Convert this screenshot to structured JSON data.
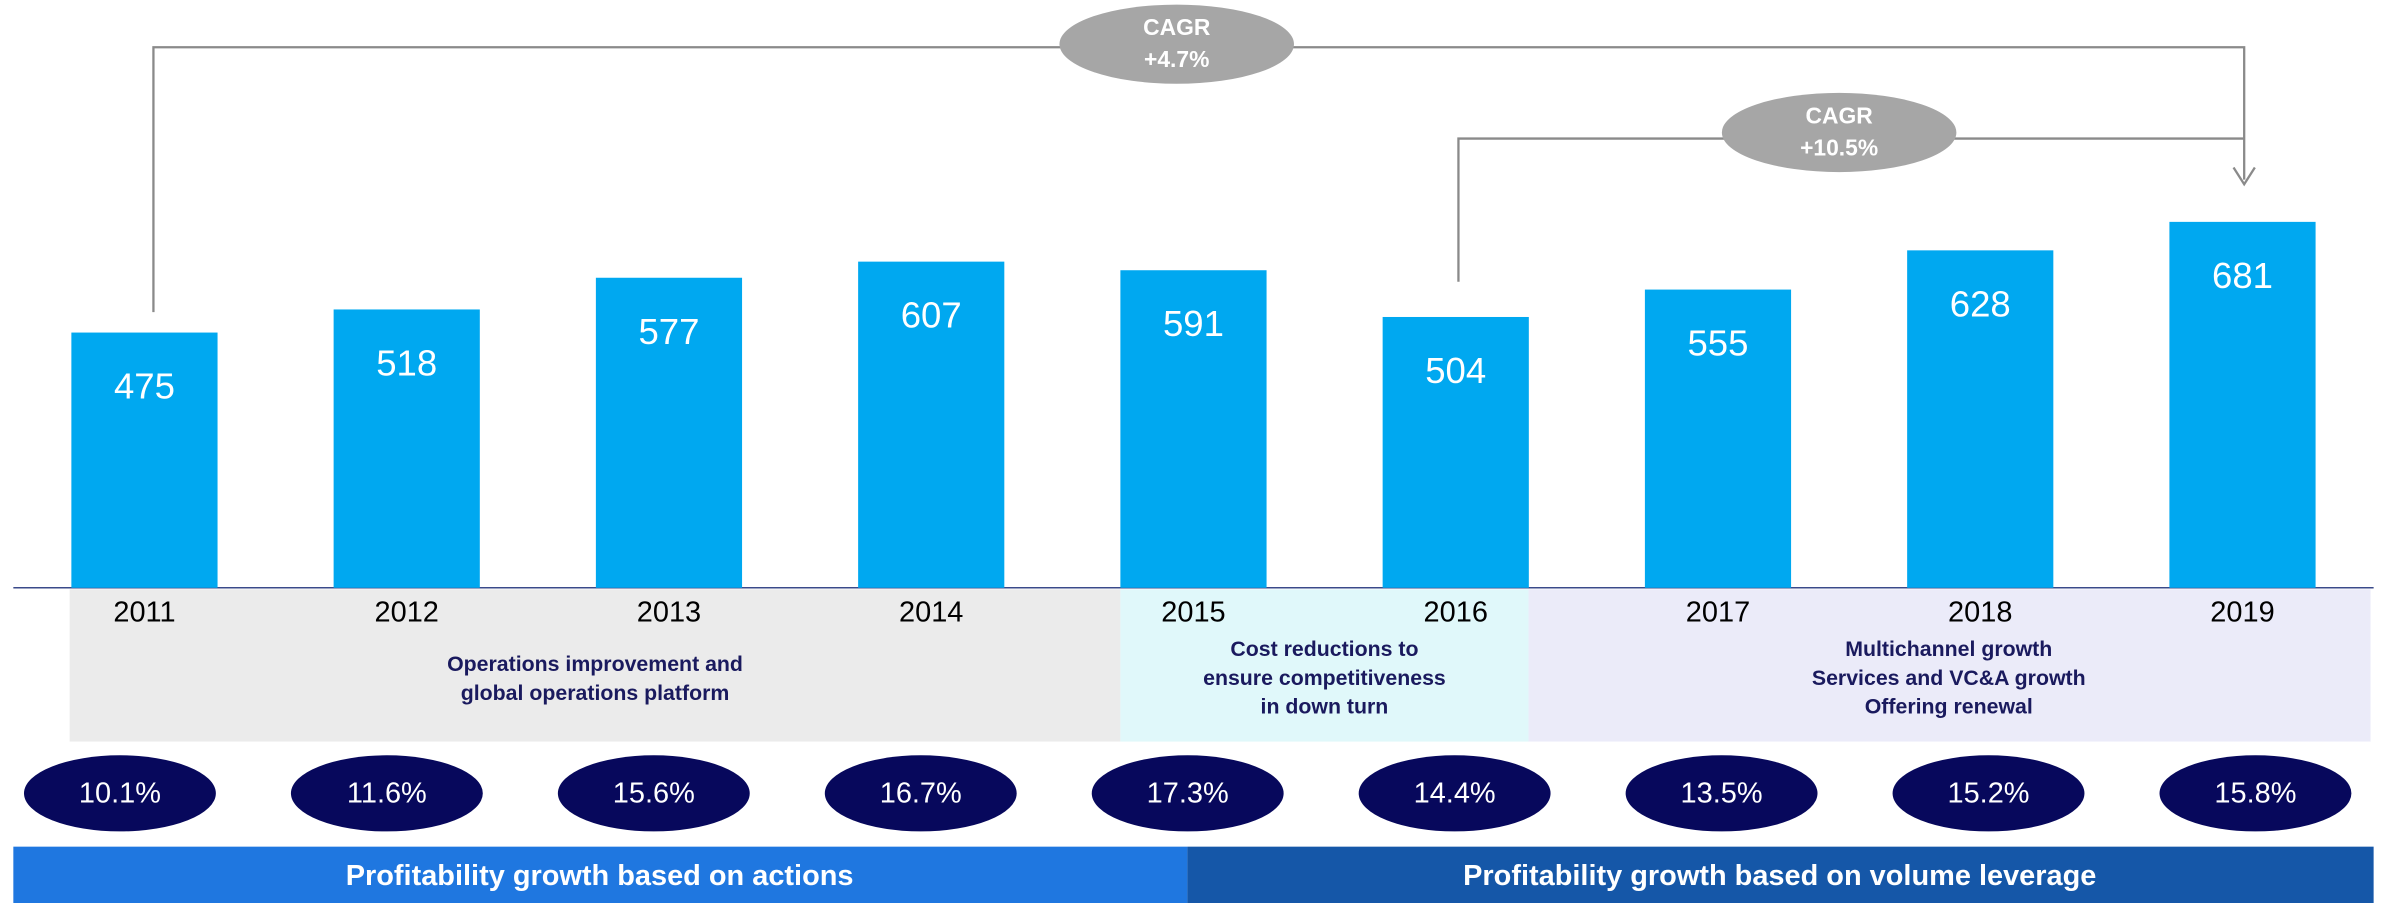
{
  "chart_data": {
    "type": "bar",
    "categories": [
      "2011",
      "2012",
      "2013",
      "2014",
      "2015",
      "2016",
      "2017",
      "2018",
      "2019"
    ],
    "values": [
      475,
      518,
      577,
      607,
      591,
      504,
      555,
      628,
      681
    ],
    "color": "#00a8f0",
    "ylim": [
      0,
      700
    ],
    "margins": {
      "values": [
        10.1,
        11.6,
        15.6,
        16.7,
        17.3,
        14.4,
        13.5,
        15.2,
        15.8
      ],
      "value_labels": [
        "10.1%",
        "11.6%",
        "15.6%",
        "16.7%",
        "17.3%",
        "14.4%",
        "13.5%",
        "15.2%",
        "15.8%"
      ]
    },
    "cagr": [
      {
        "lines": [
          "CAGR",
          "+4.7%"
        ]
      },
      {
        "lines": [
          "CAGR",
          "+10.5%"
        ]
      }
    ],
    "phases": [
      {
        "lines": [
          "Operations improvement and",
          "global operations platform"
        ]
      },
      {
        "lines": [
          "Cost reductions to",
          "ensure competitiveness",
          "in down turn"
        ]
      },
      {
        "lines": [
          "Multichannel growth",
          "Services and VC&A growth",
          "Offering renewal"
        ]
      }
    ],
    "footer": [
      "Profitability growth based on actions",
      "Profitability growth based on volume leverage"
    ]
  }
}
